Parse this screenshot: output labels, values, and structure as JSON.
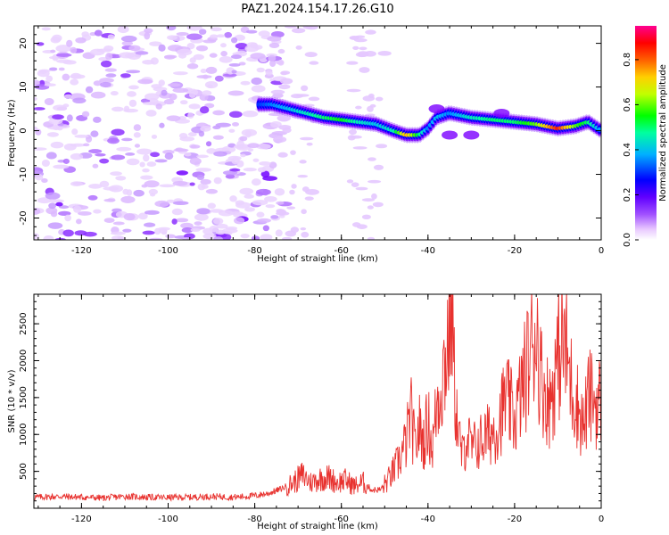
{
  "figure": {
    "title": "PAZ1.2024.154.17.26.G10",
    "colors": {
      "snr_line": "#e8322f",
      "axis": "#000000"
    }
  },
  "chart_data": [
    {
      "type": "heatmap",
      "xlabel": "Height of straight line (km)",
      "ylabel": "Frequency (Hz)",
      "xlim": [
        -131,
        0
      ],
      "ylim": [
        -25,
        24
      ],
      "x_ticks": [
        -120,
        -100,
        -80,
        -60,
        -40,
        -20,
        0
      ],
      "y_ticks": [
        -20,
        -10,
        0,
        10,
        20
      ],
      "colorbar": {
        "label": "Normalized spectral amplitude",
        "range": [
          0,
          0.95
        ],
        "ticks": [
          0.0,
          0.2,
          0.4,
          0.6,
          0.8
        ],
        "colormap": [
          "#ffffff",
          "#e8c8ff",
          "#b070ff",
          "#7a00ff",
          "#0000ff",
          "#00c8ff",
          "#00ff60",
          "#ffff00",
          "#ff8000",
          "#ff0000",
          "#ff0090"
        ]
      },
      "ridge": {
        "x": [
          -79,
          -76,
          -72,
          -68,
          -64,
          -60,
          -56,
          -52,
          -48,
          -45,
          -42,
          -40,
          -38,
          -35,
          -30,
          -25,
          -20,
          -15,
          -10,
          -6,
          -3,
          0
        ],
        "y": [
          6,
          6,
          5,
          4,
          3,
          2.5,
          2,
          1.5,
          0,
          -1,
          -1,
          0.5,
          3,
          4,
          3,
          2.5,
          2,
          1.5,
          0.5,
          1,
          2,
          0
        ],
        "amplitude": [
          0.3,
          0.35,
          0.4,
          0.45,
          0.5,
          0.55,
          0.45,
          0.4,
          0.45,
          0.75,
          0.5,
          0.35,
          0.4,
          0.35,
          0.45,
          0.5,
          0.5,
          0.6,
          0.85,
          0.6,
          0.5,
          0.35
        ]
      }
    },
    {
      "type": "line",
      "xlabel": "Height of straight line (km)",
      "ylabel": "SNR (10 * v/v)",
      "xlim": [
        -131,
        0
      ],
      "ylim": [
        0,
        2900
      ],
      "x_ticks": [
        -120,
        -100,
        -80,
        -60,
        -40,
        -20,
        0
      ],
      "y_ticks": [
        500,
        1000,
        1500,
        2000,
        2500
      ],
      "series": [
        {
          "x": [
            -131,
            -125,
            -120,
            -115,
            -110,
            -105,
            -100,
            -95,
            -90,
            -85,
            -80,
            -77,
            -74,
            -71,
            -69,
            -67,
            -65,
            -63,
            -61,
            -59,
            -57,
            -55,
            -53,
            -51,
            -49,
            -47,
            -45,
            -44,
            -43,
            -42,
            -41,
            -40,
            -39,
            -38,
            -37,
            -36,
            -35,
            -34.5,
            -34,
            -33,
            -32,
            -31,
            -30,
            -28,
            -26,
            -24,
            -22,
            -20,
            -18,
            -16,
            -15,
            -14,
            -13,
            -12,
            -11,
            -10,
            -9,
            -8,
            -7,
            -6,
            -5,
            -4,
            -3,
            -2,
            -1,
            0
          ],
          "y": [
            150,
            160,
            150,
            140,
            160,
            150,
            145,
            150,
            160,
            150,
            170,
            200,
            260,
            350,
            450,
            350,
            400,
            420,
            350,
            380,
            300,
            350,
            250,
            250,
            400,
            600,
            900,
            1300,
            800,
            1100,
            900,
            1200,
            800,
            1400,
            1700,
            2000,
            2500,
            2900,
            1800,
            1000,
            700,
            1000,
            800,
            900,
            1000,
            1100,
            1500,
            1200,
            1700,
            2200,
            2500,
            1800,
            1600,
            1400,
            1700,
            2000,
            2300,
            2100,
            1700,
            1500,
            1300,
            1100,
            1500,
            1500,
            1400,
            1500
          ]
        }
      ]
    }
  ]
}
